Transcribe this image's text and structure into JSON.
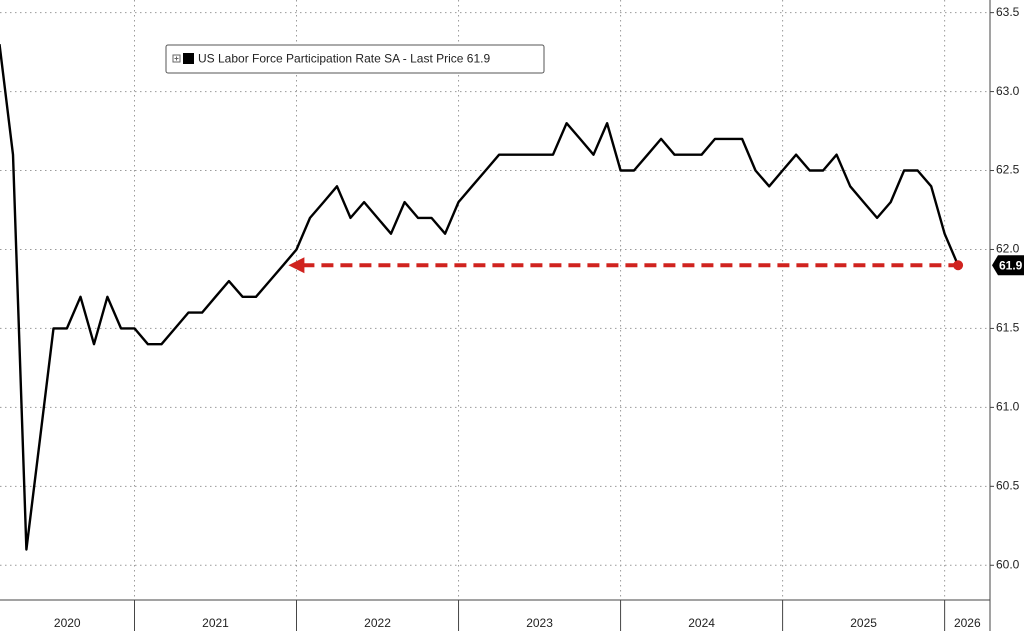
{
  "chart_data": {
    "type": "line",
    "x": [
      2020.167,
      2020.25,
      2020.333,
      2020.417,
      2020.5,
      2020.583,
      2020.667,
      2020.75,
      2020.833,
      2020.917,
      2021.0,
      2021.083,
      2021.167,
      2021.25,
      2021.333,
      2021.417,
      2021.5,
      2021.583,
      2021.667,
      2021.75,
      2021.833,
      2021.917,
      2022.0,
      2022.083,
      2022.167,
      2022.25,
      2022.333,
      2022.417,
      2022.5,
      2022.583,
      2022.667,
      2022.75,
      2022.833,
      2022.917,
      2023.0,
      2023.083,
      2023.167,
      2023.25,
      2023.333,
      2023.417,
      2023.5,
      2023.583,
      2023.667,
      2023.75,
      2023.833,
      2023.917,
      2024.0,
      2024.083,
      2024.167,
      2024.25,
      2024.333,
      2024.417,
      2024.5,
      2024.583,
      2024.667,
      2024.75,
      2024.833,
      2024.917,
      2025.0,
      2025.083,
      2025.167,
      2025.25,
      2025.333,
      2025.417,
      2025.5,
      2025.583,
      2025.667,
      2025.75,
      2025.833,
      2025.917,
      2026.0,
      2026.083
    ],
    "series": [
      {
        "name": "US Labor Force Participation Rate SA - Last Price 61.9",
        "color": "#000000",
        "values": [
          63.3,
          62.6,
          60.1,
          60.8,
          61.5,
          61.5,
          61.7,
          61.4,
          61.7,
          61.5,
          61.5,
          61.4,
          61.4,
          61.5,
          61.6,
          61.6,
          61.7,
          61.8,
          61.7,
          61.7,
          61.8,
          61.9,
          62.0,
          62.2,
          62.3,
          62.4,
          62.2,
          62.3,
          62.2,
          62.1,
          62.3,
          62.2,
          62.2,
          62.1,
          62.3,
          62.4,
          62.5,
          62.6,
          62.6,
          62.6,
          62.6,
          62.6,
          62.8,
          62.7,
          62.6,
          62.8,
          62.5,
          62.5,
          62.6,
          62.7,
          62.6,
          62.6,
          62.6,
          62.7,
          62.7,
          62.7,
          62.5,
          62.4,
          62.5,
          62.6,
          62.5,
          62.5,
          62.6,
          62.4,
          62.3,
          62.2,
          62.3,
          62.5,
          62.5,
          62.4,
          62.1,
          61.9
        ]
      }
    ],
    "last_price": 61.9,
    "annotation_arrow": {
      "y": 61.9,
      "x": [
        2021.95,
        2026.083
      ],
      "color": "#d0231f"
    },
    "xlim": [
      2020.17,
      2026.28
    ],
    "xticks": [
      {
        "value": 2020,
        "label": "2020"
      },
      {
        "value": 2021,
        "label": "2021"
      },
      {
        "value": 2022,
        "label": "2022"
      },
      {
        "value": 2023,
        "label": "2023"
      },
      {
        "value": 2024,
        "label": "2024"
      },
      {
        "value": 2025,
        "label": "2025"
      },
      {
        "value": 2026,
        "label": "2026"
      }
    ],
    "ylim": [
      59.78,
      63.58
    ],
    "yticks": [
      {
        "value": 60,
        "label": "60.0"
      },
      60.5,
      {
        "value": 61,
        "label": "61.0"
      },
      61.5,
      {
        "value": 62,
        "label": "62.0"
      },
      62.5,
      {
        "value": 63,
        "label": "63.0"
      },
      63.5
    ],
    "grid": true,
    "legend": "top-left"
  }
}
